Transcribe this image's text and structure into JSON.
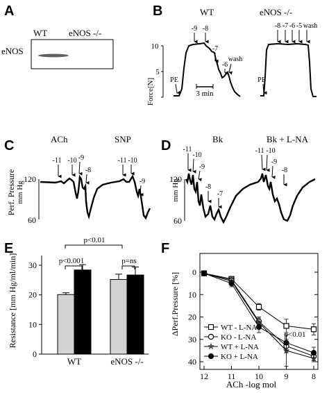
{
  "panels": {
    "A": {
      "letter": "A",
      "row_label": "eNOS",
      "lane_labels": [
        "WT",
        "eNOS -/-"
      ]
    },
    "B": {
      "letter": "B",
      "titles": [
        "WT",
        "eNOS -/-"
      ],
      "ylabel": "Force[N]",
      "ytick_labels": [
        "10",
        "5"
      ],
      "scalebar_label": "3 min",
      "wt_arrows": [
        "PE",
        "-9",
        "-8",
        "-7",
        "-6",
        "wash"
      ],
      "ko_arrows": [
        "PE",
        "-8",
        "-7",
        "-6",
        "-5",
        "wash"
      ]
    },
    "C": {
      "letter": "C",
      "titles": [
        "ACh",
        "SNP"
      ],
      "ylabel_line1": "Perf. Pressure",
      "ylabel_line2": "mm Hg",
      "ytick_labels": [
        "120",
        "60"
      ],
      "arrows": [
        "-11",
        "-10",
        "-9",
        "-8",
        "-11",
        "-10",
        "-9"
      ]
    },
    "D": {
      "letter": "D",
      "titles": [
        "Bk",
        "Bk + L-NA"
      ],
      "ylabel": "mm Hg",
      "ytick_labels": [
        "120",
        "60"
      ],
      "arrows": [
        "-11",
        "-10",
        "-9",
        "-8",
        "-7",
        "-11",
        "-10",
        "-9",
        "-8"
      ]
    },
    "E": {
      "letter": "E",
      "p_labels": [
        "p<0.01",
        "p<0.001",
        "p=ns"
      ]
    },
    "F": {
      "letter": "F",
      "p_label": "p<0.01"
    }
  },
  "chart_data": [
    {
      "type": "bar",
      "panel": "E",
      "categories": [
        "WT",
        "eNOS -/-"
      ],
      "series": [
        {
          "color": "#d3d3d3",
          "values": [
            20.1,
            25.2
          ],
          "errors": [
            0.6,
            1.8
          ]
        },
        {
          "color": "#000000",
          "values": [
            28.4,
            26.7
          ],
          "errors": [
            1.8,
            2.7
          ]
        }
      ],
      "xlabel": "",
      "ylabel": "Resistance [mm Hg/ml/min]",
      "ylim": [
        0,
        30
      ],
      "yticks": [
        0,
        10,
        20,
        30
      ],
      "grid": false
    },
    {
      "type": "line",
      "panel": "F",
      "x": [
        12,
        11,
        10,
        9,
        8
      ],
      "x_tick_labels": [
        "12",
        "11",
        "10",
        "9",
        "8"
      ],
      "xlabel": "ACh -log mol",
      "ylabel": "ΔPerf.Pressure [%]",
      "ylim": [
        0,
        40
      ],
      "yticks": [
        0,
        10,
        20,
        30,
        40
      ],
      "y_inverted": true,
      "legend_position": "bottom-left",
      "grid": false,
      "series": [
        {
          "name": "WT - L-NA",
          "marker": "open-square",
          "values": [
            0.5,
            3,
            15.5,
            24,
            25.5
          ],
          "errors": [
            0.5,
            1,
            1.5,
            3,
            2.5
          ]
        },
        {
          "name": "KO - L-NA",
          "marker": "open-circle",
          "values": [
            0.5,
            3.5,
            22,
            33,
            37.5
          ],
          "errors": [
            0.5,
            1,
            2,
            3,
            2
          ]
        },
        {
          "name": "WT + L-NA",
          "marker": "star",
          "values": [
            0.5,
            4,
            22.5,
            35,
            38.5
          ],
          "errors": [
            0.5,
            1,
            2,
            7,
            1.5
          ]
        },
        {
          "name": "KO + L-NA",
          "marker": "filled-circle",
          "values": [
            0.5,
            5,
            24.5,
            31.5,
            36
          ],
          "errors": [
            0.5,
            1.5,
            2.5,
            3.5,
            2.5
          ]
        }
      ]
    }
  ]
}
